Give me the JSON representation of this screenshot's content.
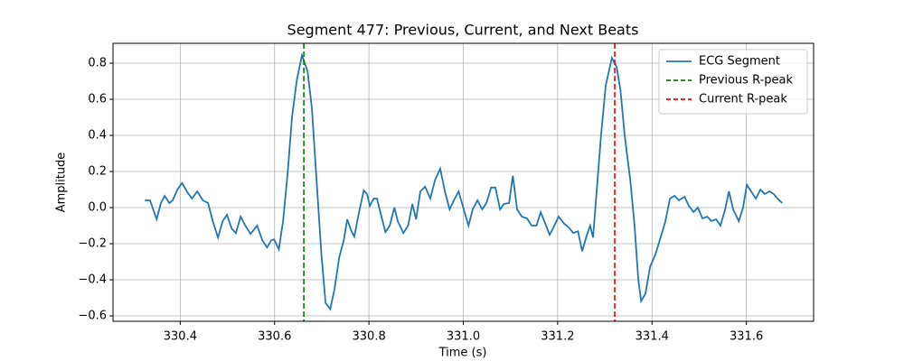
{
  "chart_data": {
    "type": "line",
    "title": "Segment 477: Previous, Current, and Next Beats",
    "xlabel": "Time (s)",
    "ylabel": "Amplitude",
    "xlim": [
      330.2575,
      331.7425
    ],
    "ylim": [
      -0.63,
      0.91
    ],
    "xticks": [
      330.4,
      330.6,
      330.8,
      {
        "value": 331,
        "label": "331.0"
      },
      331.2,
      331.4,
      331.6
    ],
    "yticks": [
      {
        "value": -0.6,
        "label": "−0.6"
      },
      {
        "value": -0.4,
        "label": "−0.4"
      },
      {
        "value": -0.2,
        "label": "−0.2"
      },
      {
        "value": 0,
        "label": "0.0"
      },
      0.2,
      0.4,
      0.6,
      0.8
    ],
    "grid": true,
    "legend": "upper right",
    "series": [
      {
        "name": "ECG Segment",
        "color": "#1f77b4",
        "x": [
          330.325,
          330.336,
          330.35,
          330.359,
          330.367,
          330.377,
          330.384,
          330.394,
          330.404,
          330.415,
          330.425,
          330.436,
          330.448,
          330.459,
          330.469,
          330.48,
          330.49,
          330.499,
          330.509,
          330.518,
          330.528,
          330.538,
          330.549,
          330.563,
          330.574,
          330.584,
          330.593,
          330.599,
          330.609,
          330.618,
          330.628,
          330.637,
          330.647,
          330.658,
          330.67,
          330.679,
          330.689,
          330.699,
          330.708,
          330.718,
          330.727,
          330.737,
          330.747,
          330.754,
          330.762,
          330.769,
          330.779,
          330.789,
          330.796,
          330.802,
          330.81,
          330.817,
          330.825,
          330.835,
          330.844,
          330.854,
          330.861,
          330.873,
          330.883,
          330.892,
          330.9,
          330.909,
          330.919,
          330.93,
          330.94,
          330.951,
          330.961,
          330.971,
          330.98,
          330.99,
          331.001,
          331.011,
          331.02,
          331.03,
          331.04,
          331.049,
          331.059,
          331.068,
          331.078,
          331.086,
          331.097,
          331.105,
          331.114,
          331.124,
          331.135,
          331.145,
          331.155,
          331.164,
          331.174,
          331.183,
          331.193,
          331.202,
          331.214,
          331.224,
          331.233,
          331.243,
          331.252,
          331.262,
          331.269,
          331.275,
          331.283,
          331.292,
          331.302,
          331.315,
          331.325,
          331.333,
          331.342,
          331.354,
          331.363,
          331.371,
          331.377,
          331.386,
          331.396,
          331.407,
          331.417,
          331.428,
          331.438,
          331.448,
          331.457,
          331.469,
          331.478,
          331.488,
          331.497,
          331.507,
          331.517,
          331.526,
          331.536,
          331.545,
          331.555,
          331.563,
          331.572,
          331.584,
          331.593,
          331.601,
          331.61,
          331.62,
          331.63,
          331.639,
          331.649,
          331.658,
          331.666,
          331.676
        ],
        "values": [
          0.04,
          0.04,
          -0.065,
          0.025,
          0.065,
          0.025,
          0.04,
          0.1,
          0.136,
          0.085,
          0.05,
          0.09,
          0.04,
          0.025,
          -0.075,
          -0.166,
          -0.075,
          -0.04,
          -0.116,
          -0.141,
          -0.05,
          -0.1,
          -0.146,
          -0.1,
          -0.181,
          -0.221,
          -0.181,
          -0.176,
          -0.231,
          -0.075,
          0.201,
          0.503,
          0.704,
          0.844,
          0.754,
          0.553,
          0.151,
          -0.251,
          -0.528,
          -0.563,
          -0.452,
          -0.276,
          -0.176,
          -0.065,
          -0.126,
          -0.161,
          -0.025,
          0.095,
          0.075,
          0.01,
          0.05,
          0.05,
          -0.035,
          -0.136,
          -0.1,
          0,
          -0.075,
          -0.141,
          -0.1,
          0.02,
          -0.065,
          0.09,
          0.116,
          0.05,
          0.151,
          0.216,
          0.09,
          -0.01,
          0.04,
          0.09,
          -0.01,
          -0.1,
          -0.01,
          0.04,
          -0.01,
          0.025,
          0.111,
          0.111,
          -0.01,
          0.02,
          0.025,
          0.176,
          -0.01,
          -0.05,
          -0.06,
          -0.1,
          -0.1,
          -0.025,
          -0.09,
          -0.151,
          -0.1,
          -0.05,
          -0.09,
          -0.111,
          -0.141,
          -0.131,
          -0.241,
          -0.151,
          -0.1,
          -0.166,
          0.1,
          0.402,
          0.678,
          0.829,
          0.779,
          0.653,
          0.402,
          0.151,
          -0.1,
          -0.402,
          -0.518,
          -0.477,
          -0.327,
          -0.261,
          -0.176,
          -0.08,
          0.05,
          0.065,
          0.04,
          0.06,
          0.01,
          -0.025,
          0,
          -0.06,
          -0.05,
          -0.075,
          -0.065,
          -0.1,
          -0.01,
          0.09,
          -0.01,
          -0.075,
          0,
          0.126,
          0.09,
          0.05,
          0.1,
          0.075,
          0.09,
          0.075,
          0.05,
          0.025
        ]
      }
    ],
    "markers": [
      {
        "name": "Previous R-peak",
        "x": 330.662,
        "color": "green"
      },
      {
        "name": "Current R-peak",
        "x": 331.321,
        "color": "red"
      }
    ]
  }
}
